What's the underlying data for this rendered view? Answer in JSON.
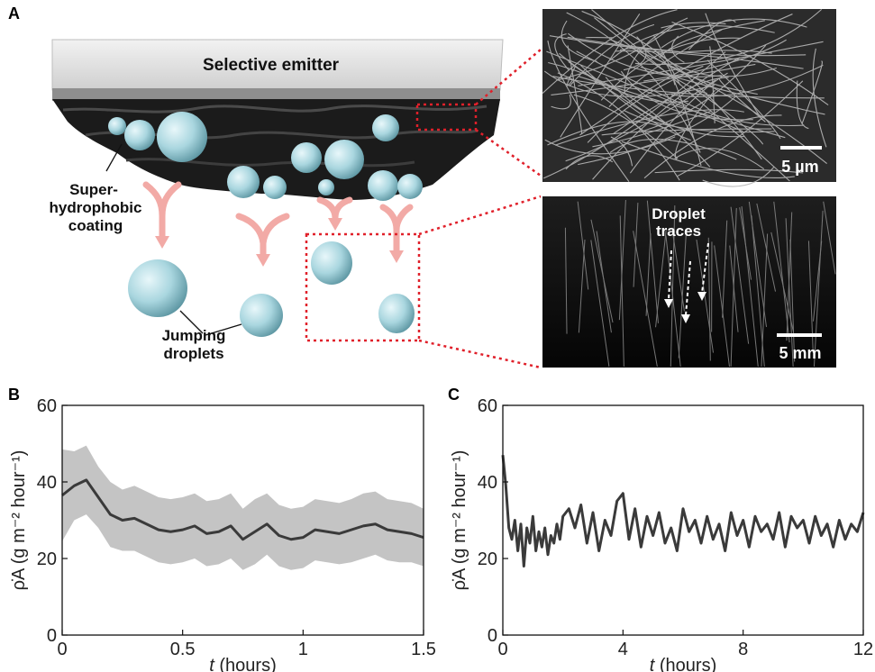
{
  "panel_labels": {
    "a": "A",
    "b": "B",
    "c": "C"
  },
  "schematic": {
    "emitter_label": "Selective emitter",
    "coating_label": [
      "Super-",
      "hydrophobic",
      "coating"
    ],
    "droplets_label": [
      "Jumping",
      "droplets"
    ]
  },
  "micrographs": {
    "sem_scale": "5 µm",
    "trace_label": [
      "Droplet",
      "traces"
    ],
    "trace_scale": "5 mm"
  },
  "colors": {
    "line": "#3a3a3a",
    "band": "#c4c4c4",
    "callout": "#e0202a",
    "arrow": "#f2aaa6",
    "droplet": "#9fcfd8"
  },
  "chart_data": [
    {
      "type": "line",
      "panel": "B",
      "xlabel_italic": "t",
      "xlabel": " (hours)",
      "ylabel": "ρ̇A (g m⁻² hour⁻¹)",
      "xlim": [
        0,
        1.5
      ],
      "ylim": [
        0,
        60
      ],
      "xticks": [
        0,
        0.5,
        1,
        1.5
      ],
      "xtick_labels": [
        "0",
        "0.5",
        "1",
        "1.5"
      ],
      "yticks": [
        0,
        20,
        40,
        60
      ],
      "ytick_labels": [
        "0",
        "20",
        "40",
        "60"
      ],
      "grid": false,
      "series": [
        {
          "x": [
            0,
            0.05,
            0.1,
            0.15,
            0.2,
            0.25,
            0.3,
            0.35,
            0.4,
            0.45,
            0.5,
            0.55,
            0.6,
            0.65,
            0.7,
            0.75,
            0.8,
            0.85,
            0.9,
            0.95,
            1.0,
            1.05,
            1.1,
            1.15,
            1.2,
            1.25,
            1.3,
            1.35,
            1.4,
            1.45,
            1.5
          ],
          "values": [
            36.5,
            39,
            40.5,
            36,
            31.5,
            30,
            30.5,
            29,
            27.5,
            27,
            27.5,
            28.5,
            26.5,
            27,
            28.5,
            25,
            27,
            29,
            26,
            25,
            25.5,
            27.5,
            27,
            26.5,
            27.5,
            28.5,
            29,
            27.5,
            27,
            26.5,
            25.5
          ],
          "lower": [
            24.5,
            30,
            31.5,
            28,
            23,
            22,
            22,
            20.5,
            19,
            18.5,
            19,
            20,
            18,
            18.5,
            20,
            17,
            18.5,
            21,
            18,
            17,
            17.5,
            19.5,
            19,
            18.5,
            19,
            20,
            21,
            19.5,
            19,
            19,
            18
          ],
          "upper": [
            48.5,
            48,
            49.5,
            44,
            40,
            38,
            39,
            37.5,
            36,
            35.5,
            36,
            37,
            35,
            35.5,
            37,
            33,
            35.5,
            37,
            34,
            33,
            33.5,
            35.5,
            35,
            34.5,
            35.5,
            37,
            37.5,
            35.5,
            35,
            34.5,
            33
          ]
        }
      ]
    },
    {
      "type": "line",
      "panel": "C",
      "xlabel_italic": "t",
      "xlabel": " (hours)",
      "ylabel": "ρ̇A (g m⁻² hour⁻¹)",
      "xlim": [
        0,
        12
      ],
      "ylim": [
        0,
        60
      ],
      "xticks": [
        0,
        4,
        8,
        12
      ],
      "xtick_labels": [
        "0",
        "4",
        "8",
        "12"
      ],
      "yticks": [
        0,
        20,
        40,
        60
      ],
      "ytick_labels": [
        "0",
        "20",
        "40",
        "60"
      ],
      "grid": false,
      "series": [
        {
          "x": [
            0,
            0.1,
            0.2,
            0.3,
            0.4,
            0.5,
            0.6,
            0.7,
            0.8,
            0.9,
            1.0,
            1.1,
            1.2,
            1.3,
            1.4,
            1.5,
            1.6,
            1.7,
            1.8,
            1.9,
            2.0,
            2.2,
            2.4,
            2.6,
            2.8,
            3.0,
            3.2,
            3.4,
            3.6,
            3.8,
            4.0,
            4.2,
            4.4,
            4.6,
            4.8,
            5.0,
            5.2,
            5.4,
            5.6,
            5.8,
            6.0,
            6.2,
            6.4,
            6.6,
            6.8,
            7.0,
            7.2,
            7.4,
            7.6,
            7.8,
            8.0,
            8.2,
            8.4,
            8.6,
            8.8,
            9.0,
            9.2,
            9.4,
            9.6,
            9.8,
            10.0,
            10.2,
            10.4,
            10.6,
            10.8,
            11.0,
            11.2,
            11.4,
            11.6,
            11.8,
            12.0
          ],
          "values": [
            47,
            39,
            28,
            25,
            30,
            22,
            29,
            18,
            28,
            24,
            31,
            22,
            27,
            23,
            28,
            21,
            26,
            24,
            29,
            25,
            31,
            33,
            28,
            34,
            24,
            32,
            22,
            30,
            26,
            35,
            37,
            25,
            33,
            23,
            31,
            26,
            32,
            24,
            28,
            22,
            33,
            27,
            30,
            24,
            31,
            25,
            29,
            22,
            32,
            26,
            30,
            23,
            31,
            27,
            29,
            25,
            32,
            23,
            31,
            28,
            30,
            24,
            31,
            26,
            29,
            23,
            30,
            25,
            29,
            27,
            32
          ]
        }
      ]
    }
  ]
}
